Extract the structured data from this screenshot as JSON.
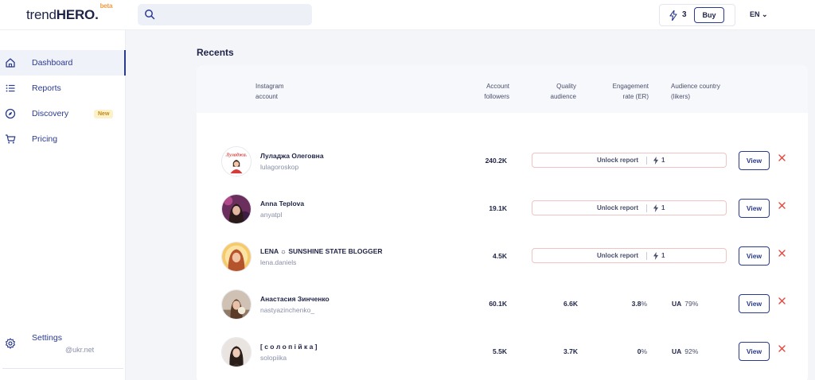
{
  "header": {
    "logo_light": "trend",
    "logo_bold": "HERO.",
    "logo_beta": "beta",
    "search_placeholder": "",
    "credits_count": "3",
    "buy_label": "Buy",
    "language": "EN"
  },
  "sidebar": {
    "items": [
      {
        "label": "Dashboard",
        "icon": "home-icon"
      },
      {
        "label": "Reports",
        "icon": "list-icon"
      },
      {
        "label": "Discovery",
        "icon": "compass-icon",
        "badge": "New"
      },
      {
        "label": "Pricing",
        "icon": "cart-icon"
      }
    ],
    "settings_label": "Settings",
    "email": "@ukr.net"
  },
  "main": {
    "title": "Recents",
    "columns": {
      "account": "Instagram account",
      "followers": "Account followers",
      "quality": "Quality audience",
      "er": "Engagement rate (ER)",
      "country": "Audience country (likers)"
    },
    "unlock_label": "Unlock report",
    "unlock_cost": "1",
    "view_label": "View",
    "rows": [
      {
        "name": "Луладжа Олеговна",
        "handle": "lulagoroskop",
        "followers": "240.2K",
        "locked": true
      },
      {
        "name": "Anna Teplova",
        "handle": "anyatpl",
        "followers": "19.1K",
        "locked": true
      },
      {
        "name": "LENA ☼ SUNSHINE STATE BLOGGER",
        "handle": "lena.daniels",
        "followers": "4.5K",
        "locked": true
      },
      {
        "name": "Анастасия Зинченко",
        "handle": "nastyazinchenko_",
        "followers": "60.1K",
        "locked": false,
        "quality": "6.6K",
        "er_value": "3.8",
        "er_unit": "%",
        "country": "UA",
        "country_pct": "79%"
      },
      {
        "name": "[ с о л о п і й к а ]",
        "handle": "solopiika",
        "followers": "5.5K",
        "locked": false,
        "quality": "3.7K",
        "er_value": "0",
        "er_unit": "%",
        "country": "UA",
        "country_pct": "92%"
      }
    ]
  },
  "colors": {
    "accent": "#2a3a8f",
    "remove": "#e0463c",
    "beta": "#f29a45",
    "unlock_border": "#f0c4c4"
  }
}
